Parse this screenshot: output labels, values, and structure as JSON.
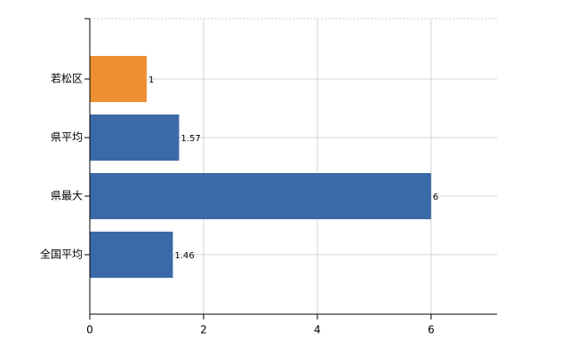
{
  "chart_data": {
    "type": "bar",
    "orientation": "horizontal",
    "categories": [
      "若松区",
      "県平均",
      "県最大",
      "全国平均"
    ],
    "values": [
      1,
      1.57,
      6,
      1.46
    ],
    "colors": [
      "#ef8f34",
      "#3c6aa8",
      "#3c6aa8",
      "#3c6aa8"
    ],
    "xlim": [
      0,
      7.16
    ],
    "xticks": [
      0,
      2,
      4,
      6
    ],
    "grid": true,
    "data_labels": true
  }
}
